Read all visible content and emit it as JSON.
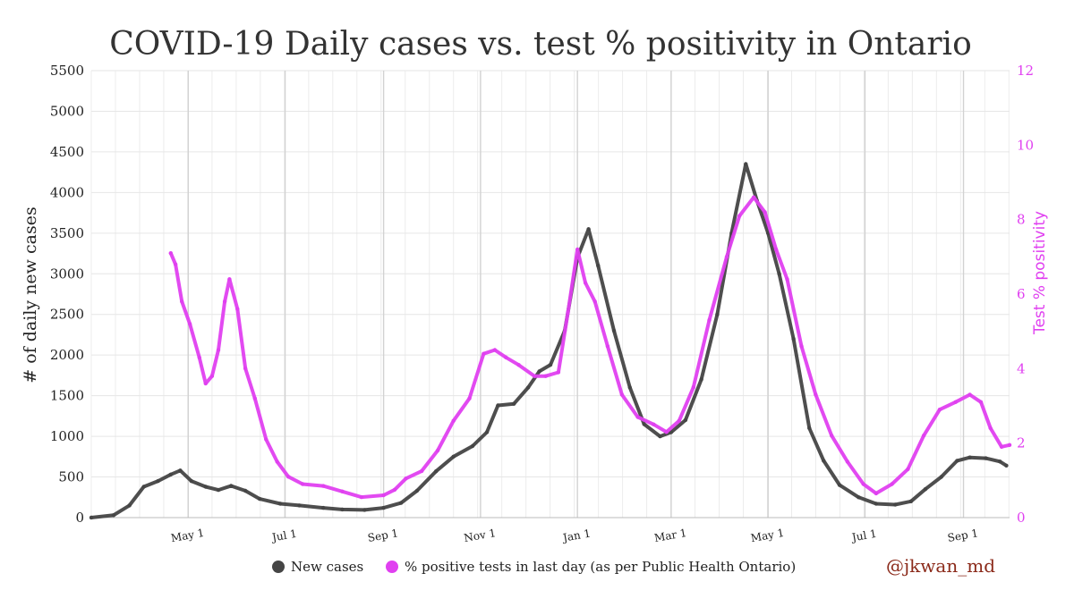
{
  "chart_data": {
    "type": "line",
    "title": "COVID-19 Daily cases vs. test % positivity in Ontario",
    "ylabel": "# of daily new cases",
    "y2label": "Test % positivity",
    "ylim": [
      0,
      5500
    ],
    "y2lim": [
      0,
      12
    ],
    "yticks": [
      0,
      500,
      1000,
      1500,
      2000,
      2500,
      3000,
      3500,
      4000,
      4500,
      5000,
      5500
    ],
    "y2ticks": [
      0,
      2,
      4,
      6,
      8,
      10,
      12
    ],
    "xrange": [
      "2020-03-01",
      "2021-09-30"
    ],
    "xticks": [
      {
        "date": "2020-05-01",
        "label": "May 1"
      },
      {
        "date": "2020-07-01",
        "label": "Jul 1"
      },
      {
        "date": "2020-09-01",
        "label": "Sep 1"
      },
      {
        "date": "2020-11-01",
        "label": "Nov 1"
      },
      {
        "date": "2021-01-01",
        "label": "Jan 1"
      },
      {
        "date": "2021-03-01",
        "label": "Mar 1"
      },
      {
        "date": "2021-05-01",
        "label": "May 1"
      },
      {
        "date": "2021-07-01",
        "label": "Jul 1"
      },
      {
        "date": "2021-09-01",
        "label": "Sep 1"
      }
    ],
    "grid": true,
    "colors": {
      "cases": "#454545",
      "positivity": "#e040f0",
      "positivity_axis": "#e040f0"
    },
    "series": [
      {
        "name": "New cases",
        "axis": "left",
        "points": [
          [
            "2020-03-01",
            0
          ],
          [
            "2020-03-15",
            30
          ],
          [
            "2020-03-25",
            150
          ],
          [
            "2020-04-03",
            380
          ],
          [
            "2020-04-12",
            450
          ],
          [
            "2020-04-20",
            530
          ],
          [
            "2020-04-26",
            580
          ],
          [
            "2020-05-03",
            450
          ],
          [
            "2020-05-12",
            380
          ],
          [
            "2020-05-20",
            340
          ],
          [
            "2020-05-28",
            390
          ],
          [
            "2020-06-06",
            330
          ],
          [
            "2020-06-15",
            230
          ],
          [
            "2020-06-28",
            170
          ],
          [
            "2020-07-10",
            150
          ],
          [
            "2020-07-25",
            120
          ],
          [
            "2020-08-06",
            100
          ],
          [
            "2020-08-20",
            95
          ],
          [
            "2020-09-01",
            120
          ],
          [
            "2020-09-12",
            180
          ],
          [
            "2020-09-22",
            330
          ],
          [
            "2020-10-04",
            570
          ],
          [
            "2020-10-15",
            750
          ],
          [
            "2020-10-27",
            880
          ],
          [
            "2020-11-05",
            1050
          ],
          [
            "2020-11-12",
            1380
          ],
          [
            "2020-11-22",
            1400
          ],
          [
            "2020-12-01",
            1600
          ],
          [
            "2020-12-08",
            1800
          ],
          [
            "2020-12-15",
            1880
          ],
          [
            "2020-12-24",
            2300
          ],
          [
            "2021-01-01",
            3200
          ],
          [
            "2021-01-08",
            3550
          ],
          [
            "2021-01-14",
            3100
          ],
          [
            "2021-01-24",
            2300
          ],
          [
            "2021-02-03",
            1600
          ],
          [
            "2021-02-12",
            1150
          ],
          [
            "2021-02-22",
            1000
          ],
          [
            "2021-03-01",
            1050
          ],
          [
            "2021-03-10",
            1200
          ],
          [
            "2021-03-20",
            1700
          ],
          [
            "2021-03-30",
            2500
          ],
          [
            "2021-04-08",
            3500
          ],
          [
            "2021-04-17",
            4350
          ],
          [
            "2021-04-24",
            3900
          ],
          [
            "2021-05-01",
            3500
          ],
          [
            "2021-05-08",
            3000
          ],
          [
            "2021-05-17",
            2200
          ],
          [
            "2021-05-27",
            1100
          ],
          [
            "2021-06-05",
            700
          ],
          [
            "2021-06-15",
            400
          ],
          [
            "2021-06-27",
            250
          ],
          [
            "2021-07-08",
            170
          ],
          [
            "2021-07-20",
            160
          ],
          [
            "2021-07-30",
            200
          ],
          [
            "2021-08-08",
            350
          ],
          [
            "2021-08-18",
            500
          ],
          [
            "2021-08-28",
            700
          ],
          [
            "2021-09-05",
            740
          ],
          [
            "2021-09-15",
            730
          ],
          [
            "2021-09-24",
            690
          ],
          [
            "2021-09-28",
            640
          ]
        ]
      },
      {
        "name": "% positive tests in last day (as per Public Health Ontario)",
        "axis": "right",
        "points": [
          [
            "2020-04-20",
            7.1
          ],
          [
            "2020-04-23",
            6.8
          ],
          [
            "2020-04-27",
            5.8
          ],
          [
            "2020-05-02",
            5.2
          ],
          [
            "2020-05-08",
            4.3
          ],
          [
            "2020-05-12",
            3.6
          ],
          [
            "2020-05-16",
            3.8
          ],
          [
            "2020-05-20",
            4.5
          ],
          [
            "2020-05-24",
            5.8
          ],
          [
            "2020-05-27",
            6.4
          ],
          [
            "2020-06-01",
            5.6
          ],
          [
            "2020-06-06",
            4.0
          ],
          [
            "2020-06-12",
            3.2
          ],
          [
            "2020-06-19",
            2.1
          ],
          [
            "2020-06-26",
            1.5
          ],
          [
            "2020-07-03",
            1.1
          ],
          [
            "2020-07-12",
            0.9
          ],
          [
            "2020-07-25",
            0.85
          ],
          [
            "2020-08-06",
            0.7
          ],
          [
            "2020-08-18",
            0.55
          ],
          [
            "2020-09-01",
            0.6
          ],
          [
            "2020-09-08",
            0.75
          ],
          [
            "2020-09-15",
            1.05
          ],
          [
            "2020-09-25",
            1.25
          ],
          [
            "2020-10-05",
            1.8
          ],
          [
            "2020-10-15",
            2.6
          ],
          [
            "2020-10-25",
            3.2
          ],
          [
            "2020-11-03",
            4.4
          ],
          [
            "2020-11-10",
            4.5
          ],
          [
            "2020-11-17",
            4.3
          ],
          [
            "2020-11-25",
            4.1
          ],
          [
            "2020-12-05",
            3.8
          ],
          [
            "2020-12-12",
            3.8
          ],
          [
            "2020-12-20",
            3.9
          ],
          [
            "2020-12-26",
            5.5
          ],
          [
            "2021-01-01",
            7.2
          ],
          [
            "2021-01-06",
            6.3
          ],
          [
            "2021-01-12",
            5.8
          ],
          [
            "2021-01-20",
            4.6
          ],
          [
            "2021-01-29",
            3.3
          ],
          [
            "2021-02-08",
            2.7
          ],
          [
            "2021-02-18",
            2.5
          ],
          [
            "2021-02-26",
            2.3
          ],
          [
            "2021-03-06",
            2.6
          ],
          [
            "2021-03-15",
            3.5
          ],
          [
            "2021-03-25",
            5.3
          ],
          [
            "2021-04-05",
            7.0
          ],
          [
            "2021-04-13",
            8.1
          ],
          [
            "2021-04-22",
            8.6
          ],
          [
            "2021-04-29",
            8.2
          ],
          [
            "2021-05-06",
            7.2
          ],
          [
            "2021-05-13",
            6.4
          ],
          [
            "2021-05-22",
            4.6
          ],
          [
            "2021-05-31",
            3.3
          ],
          [
            "2021-06-10",
            2.2
          ],
          [
            "2021-06-20",
            1.5
          ],
          [
            "2021-06-30",
            0.9
          ],
          [
            "2021-07-08",
            0.65
          ],
          [
            "2021-07-18",
            0.9
          ],
          [
            "2021-07-28",
            1.3
          ],
          [
            "2021-08-07",
            2.2
          ],
          [
            "2021-08-17",
            2.9
          ],
          [
            "2021-08-27",
            3.1
          ],
          [
            "2021-09-05",
            3.3
          ],
          [
            "2021-09-12",
            3.1
          ],
          [
            "2021-09-18",
            2.4
          ],
          [
            "2021-09-25",
            1.9
          ],
          [
            "2021-09-30",
            1.95
          ]
        ]
      }
    ],
    "legend": {
      "position": "bottom-center"
    }
  },
  "credit": "@jkwan_md"
}
